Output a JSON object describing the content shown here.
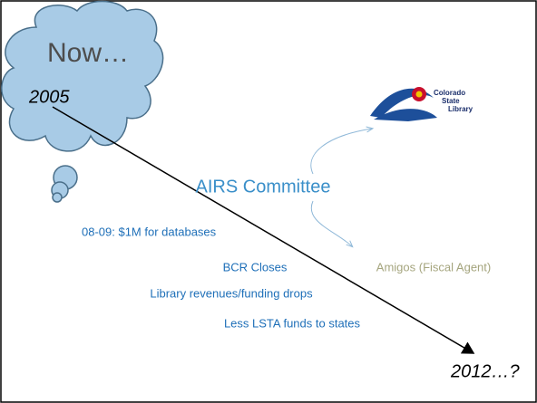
{
  "slide": {
    "title": "Now…",
    "start": "2005",
    "end": "2012…?",
    "logo": {
      "lines": [
        "Colorado",
        "State",
        "Library"
      ]
    },
    "committee": "AIRS Committee",
    "agent": "Amigos (Fiscal Agent)",
    "events": [
      "08-09: $1M for databases",
      "BCR Closes",
      "Library revenues/funding drops",
      "Less LSTA funds to states"
    ]
  }
}
